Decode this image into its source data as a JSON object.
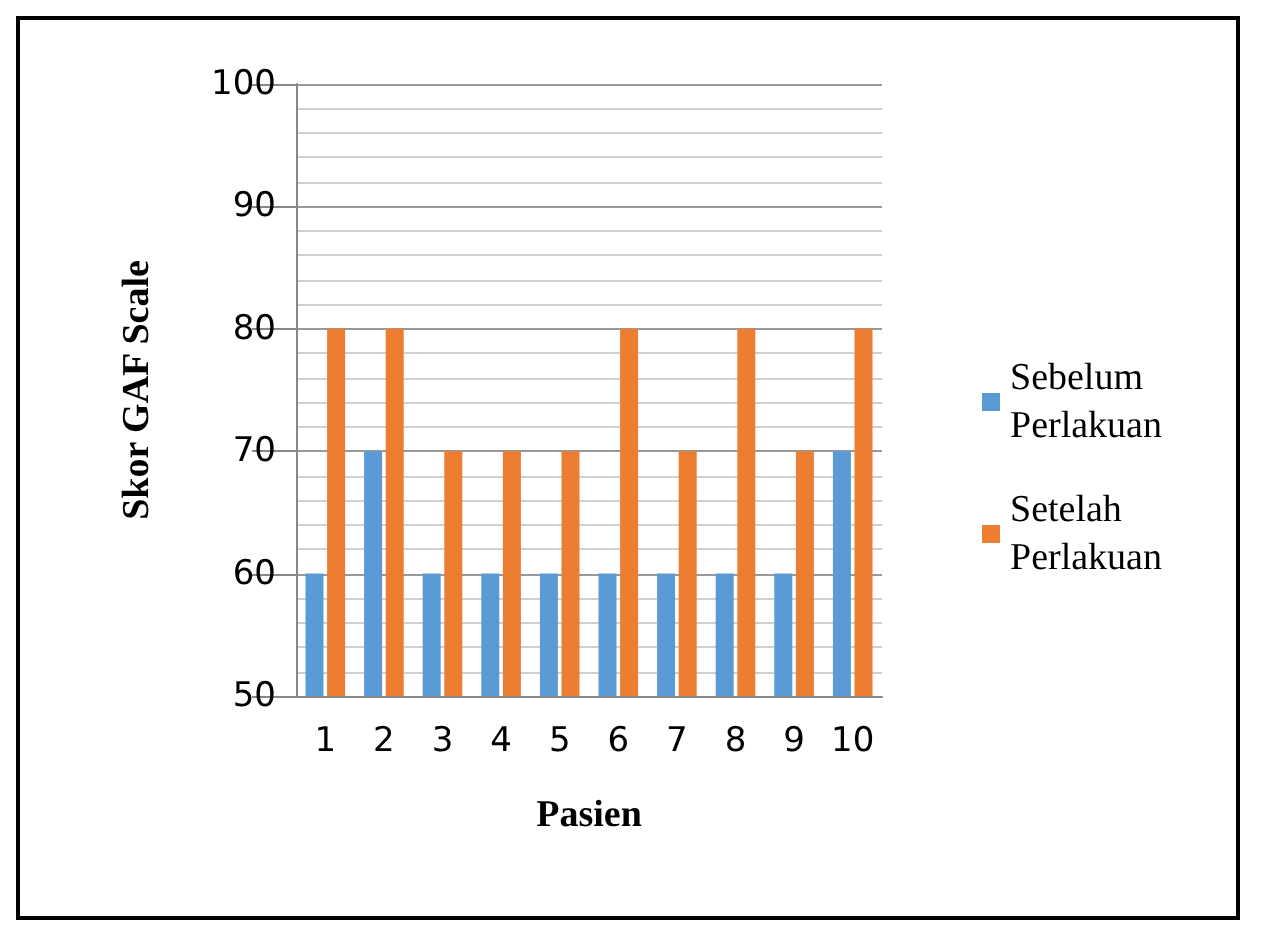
{
  "chart_data": {
    "type": "bar",
    "xlabel": "Pasien",
    "ylabel": "Skor GAF Scale",
    "categories": [
      "1",
      "2",
      "3",
      "4",
      "5",
      "6",
      "7",
      "8",
      "9",
      "10"
    ],
    "series": [
      {
        "name": "Sebelum Perlakuan",
        "color": "#5b9bd5",
        "values": [
          60,
          70,
          60,
          60,
          60,
          60,
          60,
          60,
          60,
          70
        ]
      },
      {
        "name": "Setelah Perlakuan",
        "color": "#ed7d31",
        "values": [
          80,
          80,
          70,
          70,
          70,
          80,
          70,
          80,
          70,
          80
        ]
      }
    ],
    "ylim": [
      50,
      100
    ],
    "yticks": [
      50,
      60,
      70,
      80,
      90,
      100
    ],
    "grid": "y",
    "legend": "right"
  }
}
